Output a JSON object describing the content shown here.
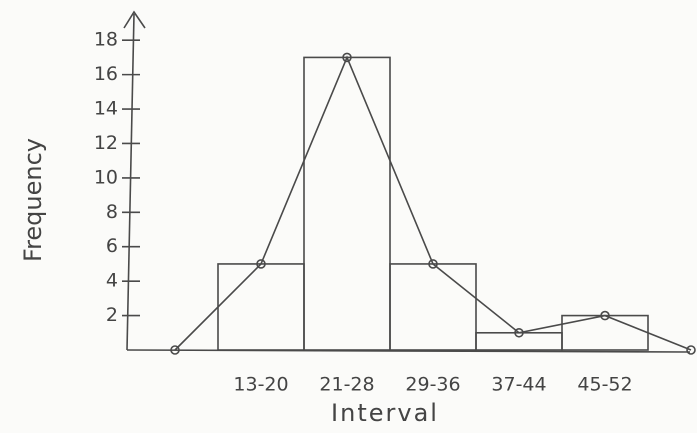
{
  "chart_data": {
    "type": "histogram-polygon",
    "x_label": "Interval",
    "y_label": "Frequency",
    "categories": [
      "13-20",
      "21-28",
      "29-36",
      "37-44",
      "45-52"
    ],
    "values": [
      5,
      17,
      5,
      1,
      2
    ],
    "color": "#4a4a4a",
    "ylim": [
      0,
      19
    ],
    "yticks": [
      2,
      4,
      6,
      8,
      10,
      12,
      14,
      16,
      18
    ]
  }
}
